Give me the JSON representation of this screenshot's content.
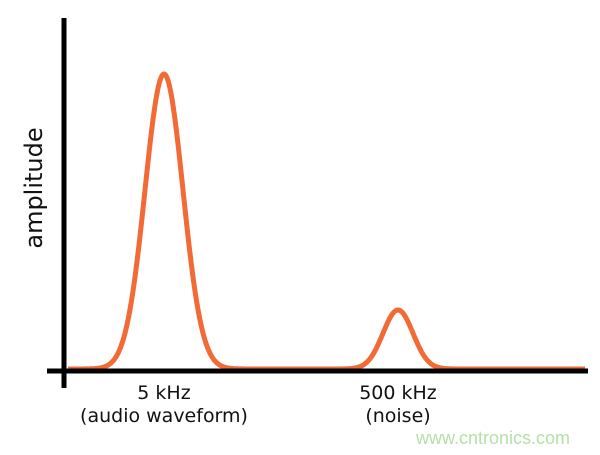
{
  "ylabel": "amplitude",
  "curve_color": "#f26a35",
  "axis_color": "#000000",
  "peaks": [
    {
      "label_line1": "5 kHz",
      "label_line2": "(audio waveform)",
      "relative_amplitude": 1.0
    },
    {
      "label_line1": "500 kHz",
      "label_line2": "(noise)",
      "relative_amplitude": 0.2
    }
  ],
  "watermark": "www.cntronics.com"
}
